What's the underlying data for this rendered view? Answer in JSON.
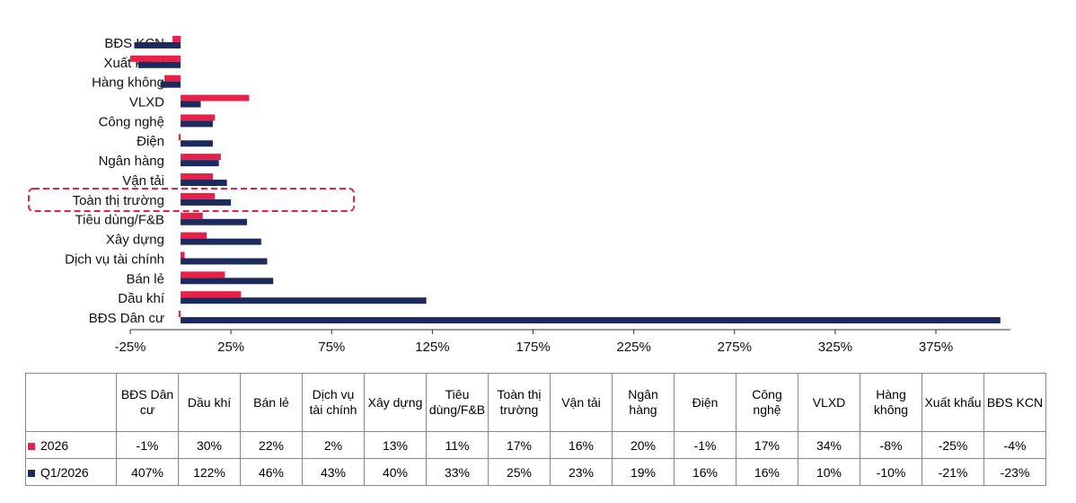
{
  "chart_data": {
    "type": "bar",
    "orientation": "horizontal",
    "categories": [
      "BĐS Dân cư",
      "Dầu khí",
      "Bán lẻ",
      "Dịch vụ tài chính",
      "Xây dựng",
      "Tiêu dùng/F&B",
      "Toàn thị trường",
      "Vận tải",
      "Ngân hàng",
      "Điện",
      "Công nghệ",
      "VLXD",
      "Hàng không",
      "Xuất khẩu",
      "BĐS KCN"
    ],
    "series": [
      {
        "name": "2026",
        "color": "#e8214a",
        "values": [
          -1,
          30,
          22,
          2,
          13,
          11,
          17,
          16,
          20,
          -1,
          17,
          34,
          -8,
          -25,
          -4
        ],
        "value_labels": [
          "-1%",
          "30%",
          "22%",
          "2%",
          "13%",
          "11%",
          "17%",
          "16%",
          "20%",
          "-1%",
          "17%",
          "34%",
          "-8%",
          "-25%",
          "-4%"
        ]
      },
      {
        "name": "Q1/2026",
        "color": "#1c2a5e",
        "values": [
          407,
          122,
          46,
          43,
          40,
          33,
          25,
          23,
          19,
          16,
          16,
          10,
          -10,
          -21,
          -23
        ],
        "value_labels": [
          "407%",
          "122%",
          "46%",
          "43%",
          "40%",
          "33%",
          "25%",
          "23%",
          "19%",
          "16%",
          "16%",
          "10%",
          "-10%",
          "-21%",
          "-23%"
        ]
      }
    ],
    "xlim": [
      -25,
      412
    ],
    "xticks": [
      {
        "value": -25,
        "label": "-25%"
      },
      {
        "value": 25,
        "label": "25%"
      },
      {
        "value": 75,
        "label": "75%"
      },
      {
        "value": 125,
        "label": "125%"
      },
      {
        "value": 175,
        "label": "175%"
      },
      {
        "value": 225,
        "label": "225%"
      },
      {
        "value": 275,
        "label": "275%"
      },
      {
        "value": 325,
        "label": "325%"
      },
      {
        "value": 375,
        "label": "375%"
      }
    ],
    "grid": false
  }
}
